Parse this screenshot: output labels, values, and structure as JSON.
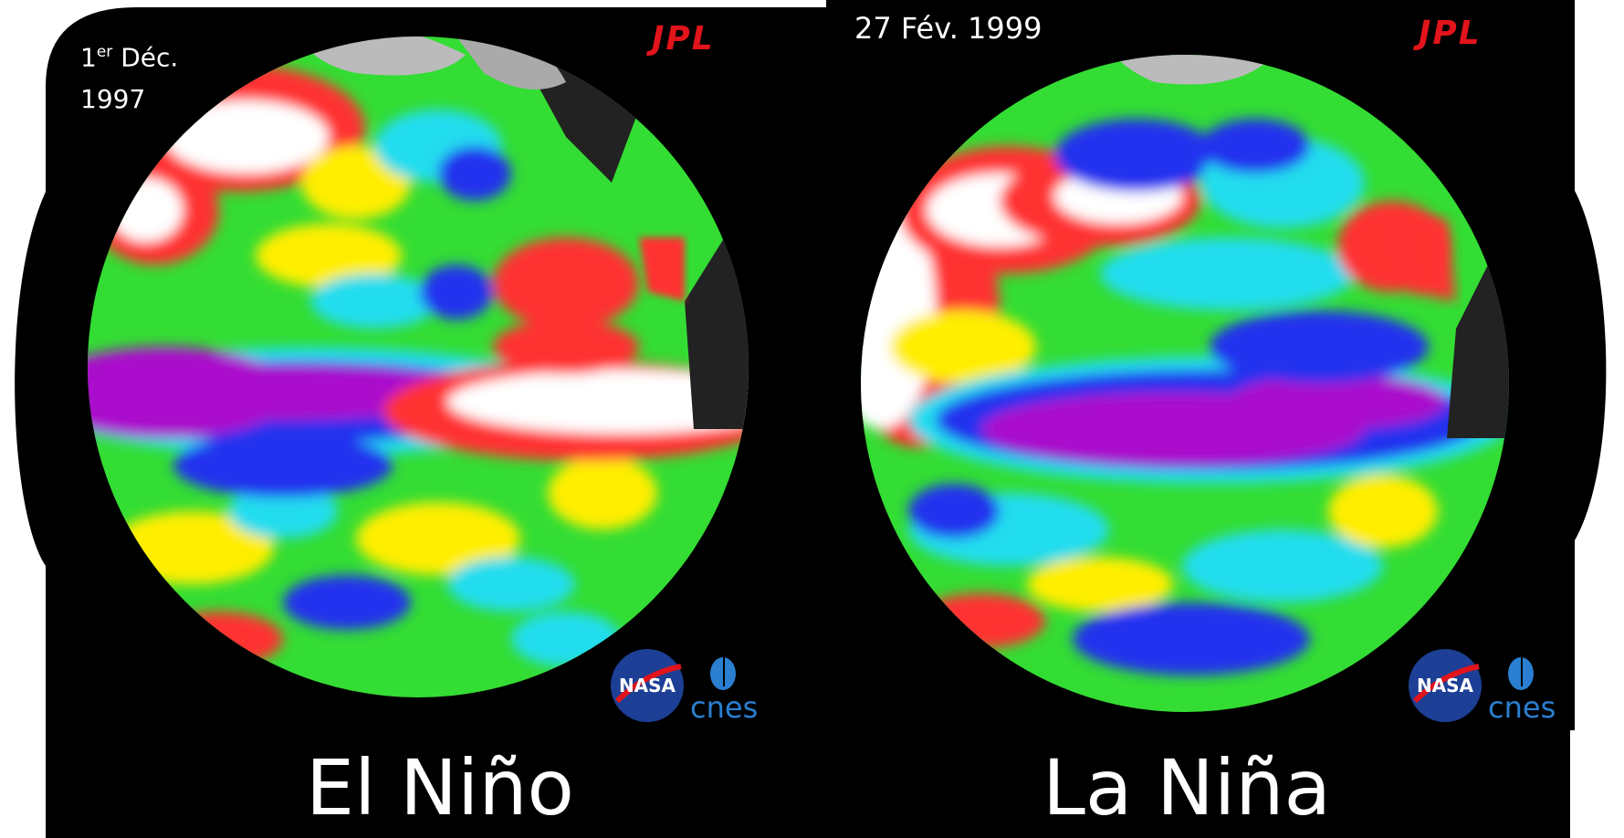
{
  "panels": [
    {
      "date_prefix": "1",
      "date_sup": "er",
      "date_month": "Déc.",
      "date_year": "1997",
      "title": "El Niño",
      "logos": [
        "jpl-logo",
        "nasa-logo",
        "cnes-logo"
      ]
    },
    {
      "date": "27 Fév. 1999",
      "title": "La Niña",
      "logos": [
        "jpl-logo",
        "nasa-logo",
        "cnes-logo"
      ]
    }
  ],
  "logo_text": {
    "jpl": "JPL",
    "nasa": "NASA",
    "cnes": "cnes"
  },
  "colors": {
    "background": "#000000",
    "jpl_red": "#e2141b",
    "nasa_blue": "#1d3f95",
    "cnes_blue": "#2a7fd1",
    "anomaly_high": "#ffffff",
    "anomaly_red": "#ff2020",
    "anomaly_yellow": "#ffee00",
    "anomaly_green": "#33dd33",
    "anomaly_cyan": "#22ddee",
    "anomaly_blue": "#2233ee",
    "anomaly_low": "#aa11cc",
    "land": "#222222",
    "ice": "#bbbbbb"
  }
}
